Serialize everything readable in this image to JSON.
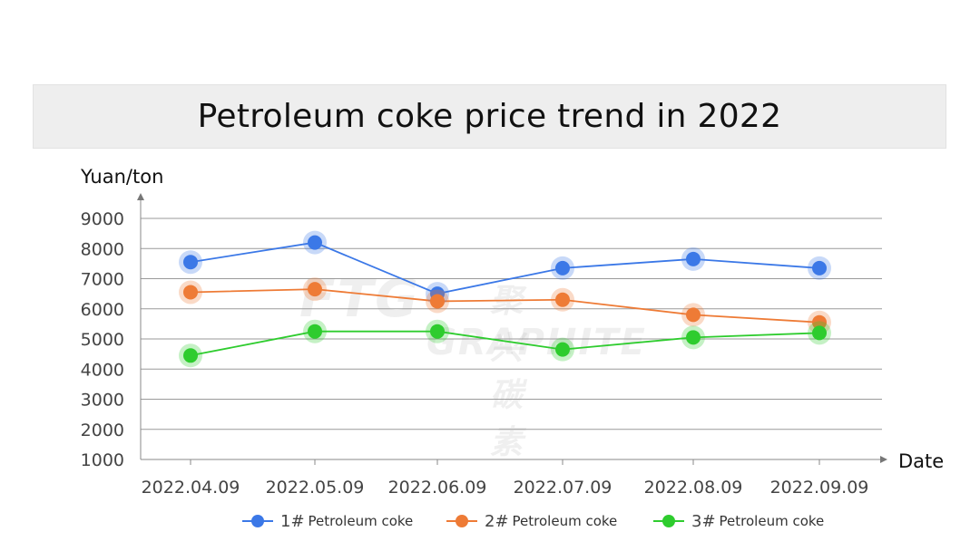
{
  "title": "Petroleum coke price trend in 2022",
  "watermark": {
    "logo": "FTG",
    "cn": "聚兴碳素",
    "en": "GRAPHITE"
  },
  "chart_data": {
    "type": "line",
    "title": "Petroleum coke price trend in 2022",
    "ylabel": "Yuan/ton",
    "xlabel": "Date",
    "categories": [
      "2022.04.09",
      "2022.05.09",
      "2022.06.09",
      "2022.07.09",
      "2022.08.09",
      "2022.09.09"
    ],
    "yticks": [
      "9000",
      "8000",
      "7000",
      "6000",
      "5000",
      "4000",
      "3000",
      "2000",
      "1000"
    ],
    "ylim": [
      1000,
      9000
    ],
    "grid": true,
    "legend_position": "bottom",
    "series": [
      {
        "num": "1#",
        "name": "Petroleum coke",
        "color": "#3b78e7",
        "values": [
          7550,
          8200,
          6500,
          7350,
          7650,
          7350
        ]
      },
      {
        "num": "2#",
        "name": "Petroleum coke",
        "color": "#ee7b36",
        "values": [
          6550,
          6650,
          6250,
          6300,
          5800,
          5550
        ]
      },
      {
        "num": "3#",
        "name": "Petroleum coke",
        "color": "#2ecc2e",
        "values": [
          4450,
          5250,
          5250,
          4650,
          5050,
          5200
        ]
      }
    ]
  }
}
